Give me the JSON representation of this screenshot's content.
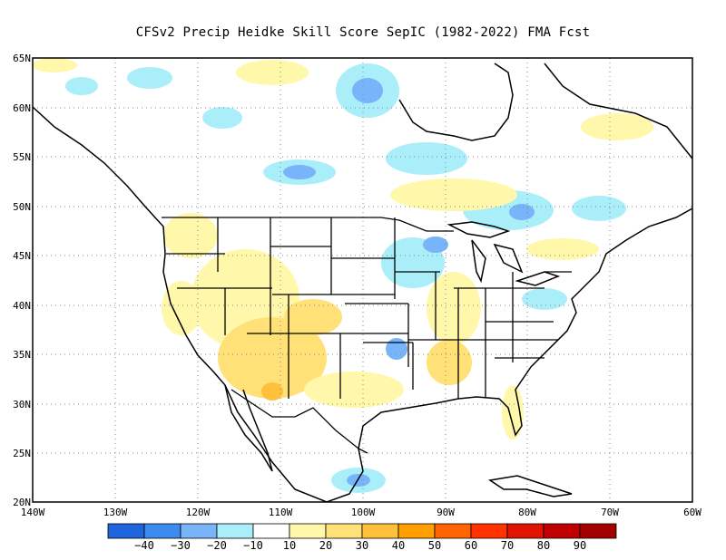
{
  "title": "CFSv2 Precip Heidke Skill Score SepIC (1982-2022) FMA Fcst",
  "map": {
    "lat_labels": [
      "65N",
      "60N",
      "55N",
      "50N",
      "45N",
      "40N",
      "35N",
      "30N",
      "25N",
      "20N"
    ],
    "lon_labels": [
      "140W",
      "130W",
      "120W",
      "110W",
      "100W",
      "90W",
      "80W",
      "70W",
      "60W"
    ],
    "extent": {
      "lon_min": -140,
      "lon_max": -60,
      "lat_min": 20,
      "lat_max": 65
    },
    "grid_lines": "dotted"
  },
  "colorbar": {
    "colors": [
      "#1e64dc",
      "#3c8cf0",
      "#78b4fa",
      "#aaeefa",
      "#ffffff",
      "#fff8aa",
      "#ffe178",
      "#ffc03c",
      "#ffa000",
      "#ff6400",
      "#ff3200",
      "#e11400",
      "#c00000",
      "#a50000"
    ],
    "labels": [
      "−40",
      "−30",
      "−20",
      "−10",
      "10",
      "20",
      "30",
      "40",
      "50",
      "60",
      "70",
      "80",
      "90"
    ]
  },
  "legend_colors": {
    "neg10": "#aaeefa",
    "neg20": "#78b4fa",
    "neg30": "#3c8cf0",
    "pos10": "#fff8aa",
    "pos20": "#ffe178",
    "pos30": "#ffc03c"
  }
}
